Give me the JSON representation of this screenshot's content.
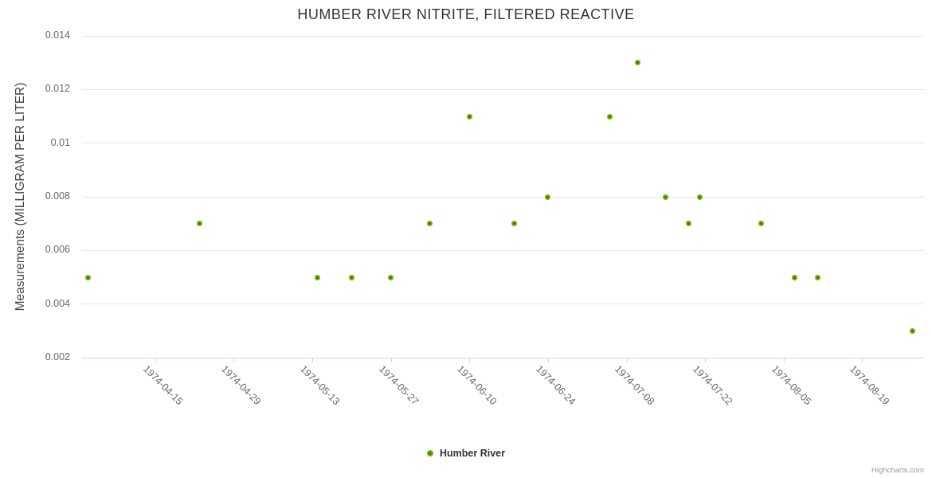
{
  "chart_data": {
    "type": "scatter",
    "title": "HUMBER RIVER NITRITE, FILTERED REACTIVE",
    "xlabel": "",
    "ylabel": "Measurements (MILLIGRAM PER LITER)",
    "xlim": [
      "1974-04-02",
      "1974-08-30"
    ],
    "ylim": [
      0.002,
      0.014
    ],
    "grid": "horizontal",
    "legend_position": "bottom-center",
    "x_ticks": [
      "1974-04-15",
      "1974-04-29",
      "1974-05-13",
      "1974-05-27",
      "1974-06-10",
      "1974-06-24",
      "1974-07-08",
      "1974-07-22",
      "1974-08-05",
      "1974-08-19"
    ],
    "y_ticks": [
      {
        "value": 0.002,
        "label": "0.002"
      },
      {
        "value": 0.004,
        "label": "0.004"
      },
      {
        "value": 0.006,
        "label": "0.006"
      },
      {
        "value": 0.008,
        "label": "0.008"
      },
      {
        "value": 0.01,
        "label": "0.01"
      },
      {
        "value": 0.012,
        "label": "0.012"
      },
      {
        "value": 0.014,
        "label": "0.014"
      }
    ],
    "series": [
      {
        "name": "Humber River",
        "color": "#77b107",
        "points": [
          {
            "x": "1974-04-03",
            "y": 0.005
          },
          {
            "x": "1974-04-23",
            "y": 0.007
          },
          {
            "x": "1974-05-14",
            "y": 0.005
          },
          {
            "x": "1974-05-20",
            "y": 0.005
          },
          {
            "x": "1974-05-27",
            "y": 0.005
          },
          {
            "x": "1974-06-03",
            "y": 0.007
          },
          {
            "x": "1974-06-10",
            "y": 0.011
          },
          {
            "x": "1974-06-18",
            "y": 0.007
          },
          {
            "x": "1974-06-24",
            "y": 0.008
          },
          {
            "x": "1974-07-05",
            "y": 0.011
          },
          {
            "x": "1974-07-10",
            "y": 0.013
          },
          {
            "x": "1974-07-15",
            "y": 0.008
          },
          {
            "x": "1974-07-19",
            "y": 0.007
          },
          {
            "x": "1974-07-21",
            "y": 0.008
          },
          {
            "x": "1974-08-01",
            "y": 0.007
          },
          {
            "x": "1974-08-07",
            "y": 0.005
          },
          {
            "x": "1974-08-11",
            "y": 0.005
          },
          {
            "x": "1974-08-28",
            "y": 0.003
          }
        ]
      }
    ]
  },
  "credits": {
    "label": "Highcharts.com"
  },
  "colors": {
    "title": "#333333",
    "axis_label": "#666666",
    "y_axis_title": "#444444",
    "grid": "#e6e6e6",
    "axis_line": "#ccd6eb",
    "marker": "#77b107",
    "marker_center": "#3d7a02",
    "legend_text": "#333333",
    "credits": "#999999"
  }
}
